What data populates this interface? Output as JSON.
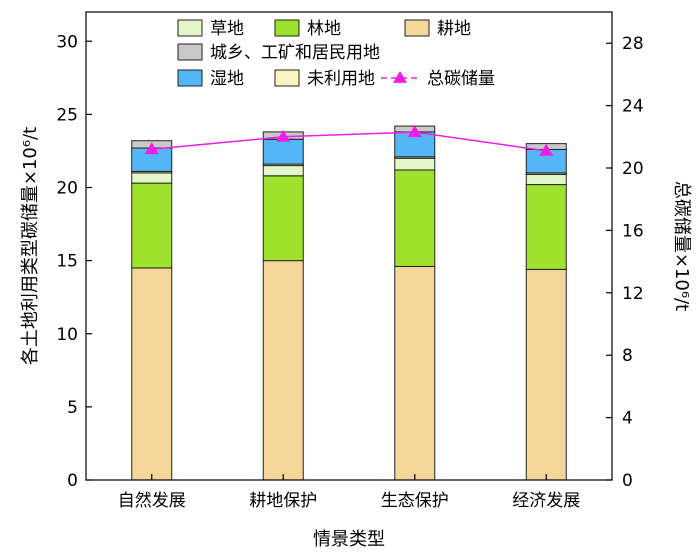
{
  "chart_data": {
    "type": "bar",
    "stacked": true,
    "categories": [
      "自然发展",
      "耕地保护",
      "生态保护",
      "经济发展"
    ],
    "series": [
      {
        "name": "耕地",
        "color": "#f4d59a",
        "values": [
          14.5,
          15.0,
          14.6,
          14.4
        ]
      },
      {
        "name": "林地",
        "color": "#9ee22e",
        "values": [
          5.8,
          5.8,
          6.6,
          5.8
        ]
      },
      {
        "name": "草地",
        "color": "#e2f7c8",
        "values": [
          0.7,
          0.7,
          0.8,
          0.7
        ]
      },
      {
        "name": "未利用地",
        "color": "#fbf3c2",
        "values": [
          0.1,
          0.1,
          0.1,
          0.1
        ]
      },
      {
        "name": "湿地",
        "color": "#55b6f5",
        "values": [
          1.6,
          1.7,
          1.7,
          1.6
        ]
      },
      {
        "name": "城乡、工矿和居民用地",
        "color": "#c9c9c9",
        "values": [
          0.5,
          0.5,
          0.4,
          0.4
        ]
      }
    ],
    "line": {
      "name": "总碳储量",
      "color": "#ee1ee6",
      "values": [
        21.2,
        22.0,
        22.3,
        21.1
      ]
    },
    "xlabel": "情景类型",
    "ylabel_left": "各土地利用类型碳储量×10⁶/t",
    "ylabel_right": "总碳储量×10⁶/t",
    "ylim_left": [
      0,
      32
    ],
    "ylim_right": [
      0,
      30
    ],
    "yticks_left": [
      0,
      5,
      10,
      15,
      20,
      25,
      30
    ],
    "yticks_right": [
      0,
      4,
      8,
      12,
      16,
      20,
      24,
      28
    ],
    "legend_placement": "top",
    "legend_order": [
      "草地",
      "林地",
      "耕地",
      "城乡、工矿和居民用地",
      "湿地",
      "未利用地",
      "总碳储量"
    ],
    "grid": false
  }
}
